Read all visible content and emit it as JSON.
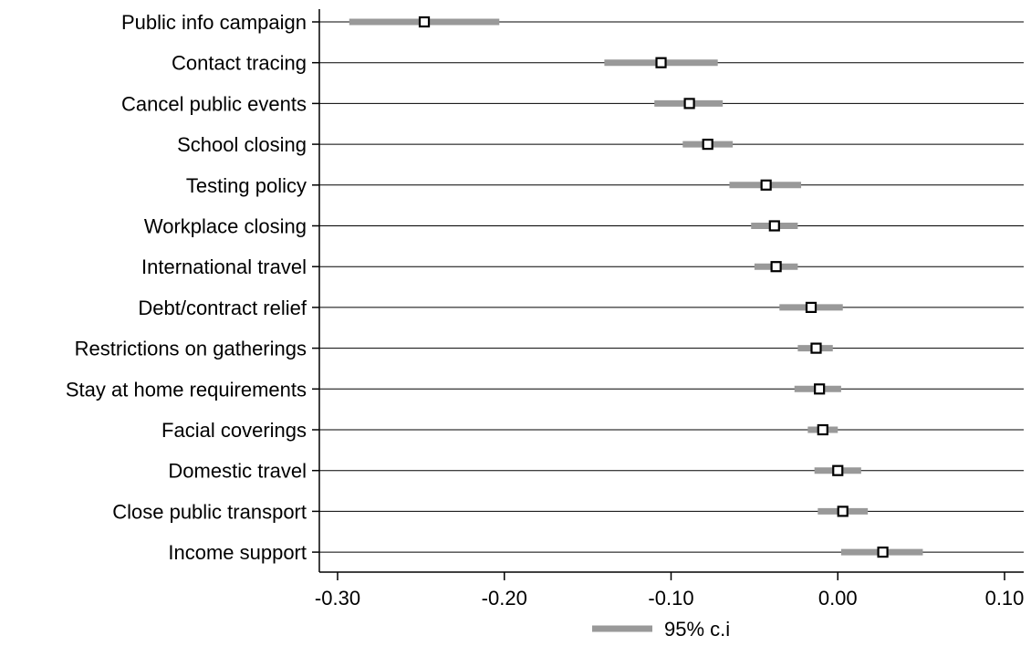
{
  "chart_data": {
    "type": "coefficient_plot",
    "categories": [
      "Public info campaign",
      "Contact tracing",
      "Cancel public events",
      "School closing",
      "Testing policy",
      "Workplace closing",
      "International travel",
      "Debt/contract relief",
      "Restrictions on gatherings",
      "Stay at home requirements",
      "Facial coverings",
      "Domestic travel",
      "Close public transport",
      "Income support"
    ],
    "estimates": [
      -0.248,
      -0.106,
      -0.089,
      -0.078,
      -0.043,
      -0.038,
      -0.037,
      -0.016,
      -0.013,
      -0.011,
      -0.009,
      0.0,
      0.003,
      0.027
    ],
    "ci_lower": [
      -0.293,
      -0.14,
      -0.11,
      -0.093,
      -0.065,
      -0.052,
      -0.05,
      -0.035,
      -0.024,
      -0.026,
      -0.018,
      -0.014,
      -0.012,
      0.002
    ],
    "ci_upper": [
      -0.203,
      -0.072,
      -0.069,
      -0.063,
      -0.022,
      -0.024,
      -0.024,
      0.003,
      -0.003,
      0.002,
      0.0,
      0.014,
      0.018,
      0.051
    ],
    "xlim": [
      -0.31,
      0.11
    ],
    "xticks": [
      -0.3,
      -0.2,
      -0.1,
      0.0,
      0.1
    ],
    "xtick_labels": [
      "-0.30",
      "-0.20",
      "-0.10",
      "0.00",
      "0.10"
    ],
    "legend": [
      "95% c.i"
    ],
    "legend_position": "bottom-center",
    "grid": "horizontal",
    "colors": {
      "ci": "#999999",
      "gridline": "#000000",
      "marker_edge": "#000000",
      "marker_fill": "#ffffff"
    }
  }
}
